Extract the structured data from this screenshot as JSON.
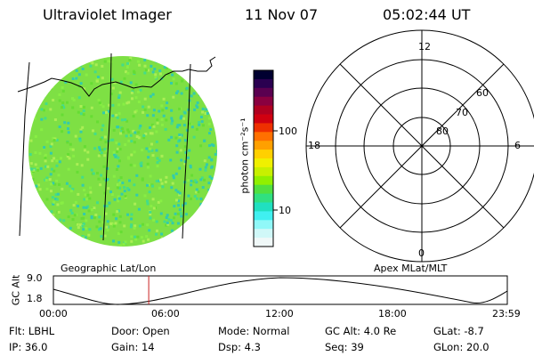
{
  "header": {
    "instrument": "Ultraviolet Imager",
    "date": "11 Nov 07",
    "time": "05:02:44 UT"
  },
  "colorbar": {
    "label": "photon cm⁻²s⁻¹",
    "ticks": [
      "100",
      "10"
    ],
    "colors": [
      "#000030",
      "#2a0050",
      "#5a0050",
      "#8a0040",
      "#b00020",
      "#d00010",
      "#ee3000",
      "#ff7000",
      "#ffa000",
      "#ffd000",
      "#f0f000",
      "#c8f000",
      "#90f000",
      "#50e040",
      "#30e080",
      "#20e0c0",
      "#40f0f0",
      "#90f8f8",
      "#d0f8f8",
      "#f0f8f8"
    ]
  },
  "image_panel": {
    "label": "Geographic Lat/Lon",
    "fill_colors": [
      "#66dd33",
      "#88ee44",
      "#44dd88",
      "#33ccaa",
      "#aaee55"
    ]
  },
  "polar_panel": {
    "label": "Apex MLat/MLT",
    "mlt_labels": {
      "top": "12",
      "left": "18",
      "right": "6",
      "bottom": "0"
    },
    "mlat_labels": [
      "60",
      "70",
      "80"
    ]
  },
  "orbit_plot": {
    "ylabel": "GC Alt",
    "yticks": [
      "9.0",
      "1.8"
    ],
    "xticks": [
      "00:00",
      "06:00",
      "12:00",
      "18:00",
      "23:59"
    ],
    "current_time_fraction": 0.21,
    "marker_color": "#cc2222"
  },
  "info": {
    "flt": "Flt: LBHL",
    "door": "Door: Open",
    "mode": "Mode: Normal",
    "gc_alt": "GC Alt: 4.0 Re",
    "glat": "GLat:  -8.7",
    "ip": "IP: 36.0",
    "gain": "Gain: 14",
    "dsp": "Dsp:     4.3",
    "seq": "Seq: 39",
    "glon": "GLon:  20.0"
  }
}
